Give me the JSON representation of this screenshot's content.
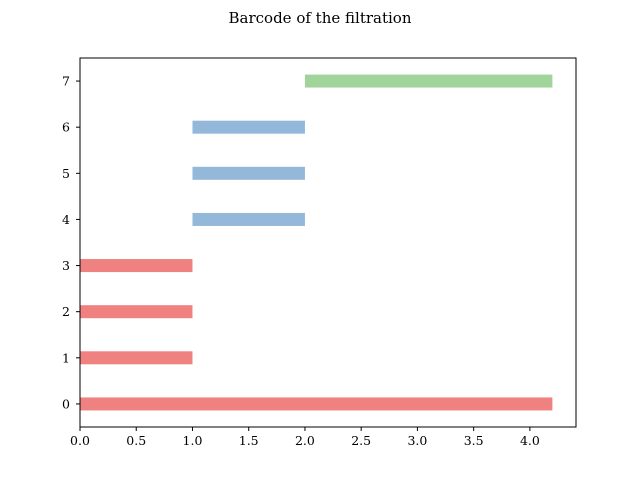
{
  "chart_data": {
    "type": "bar",
    "orientation": "horizontal",
    "title": "Barcode of the filtration",
    "xlabel": "",
    "ylabel": "",
    "xlim": [
      0,
      4.41
    ],
    "ylim": [
      -0.5,
      7.5
    ],
    "grid": false,
    "x_ticks": [
      "0.0",
      "0.5",
      "1.0",
      "1.5",
      "2.0",
      "2.5",
      "3.0",
      "3.5",
      "4.0"
    ],
    "y_ticks": [
      "0",
      "1",
      "2",
      "3",
      "4",
      "5",
      "6",
      "7"
    ],
    "bars": [
      {
        "y": 0,
        "start": 0.0,
        "end": 4.2,
        "color": "#ef8181"
      },
      {
        "y": 1,
        "start": 0.0,
        "end": 1.0,
        "color": "#ef8181"
      },
      {
        "y": 2,
        "start": 0.0,
        "end": 1.0,
        "color": "#ef8181"
      },
      {
        "y": 3,
        "start": 0.0,
        "end": 1.0,
        "color": "#ef8181"
      },
      {
        "y": 4,
        "start": 1.0,
        "end": 2.0,
        "color": "#93b8d9"
      },
      {
        "y": 5,
        "start": 1.0,
        "end": 2.0,
        "color": "#93b8d9"
      },
      {
        "y": 6,
        "start": 1.0,
        "end": 2.0,
        "color": "#93b8d9"
      },
      {
        "y": 7,
        "start": 2.0,
        "end": 4.2,
        "color": "#a1d49b"
      }
    ]
  }
}
